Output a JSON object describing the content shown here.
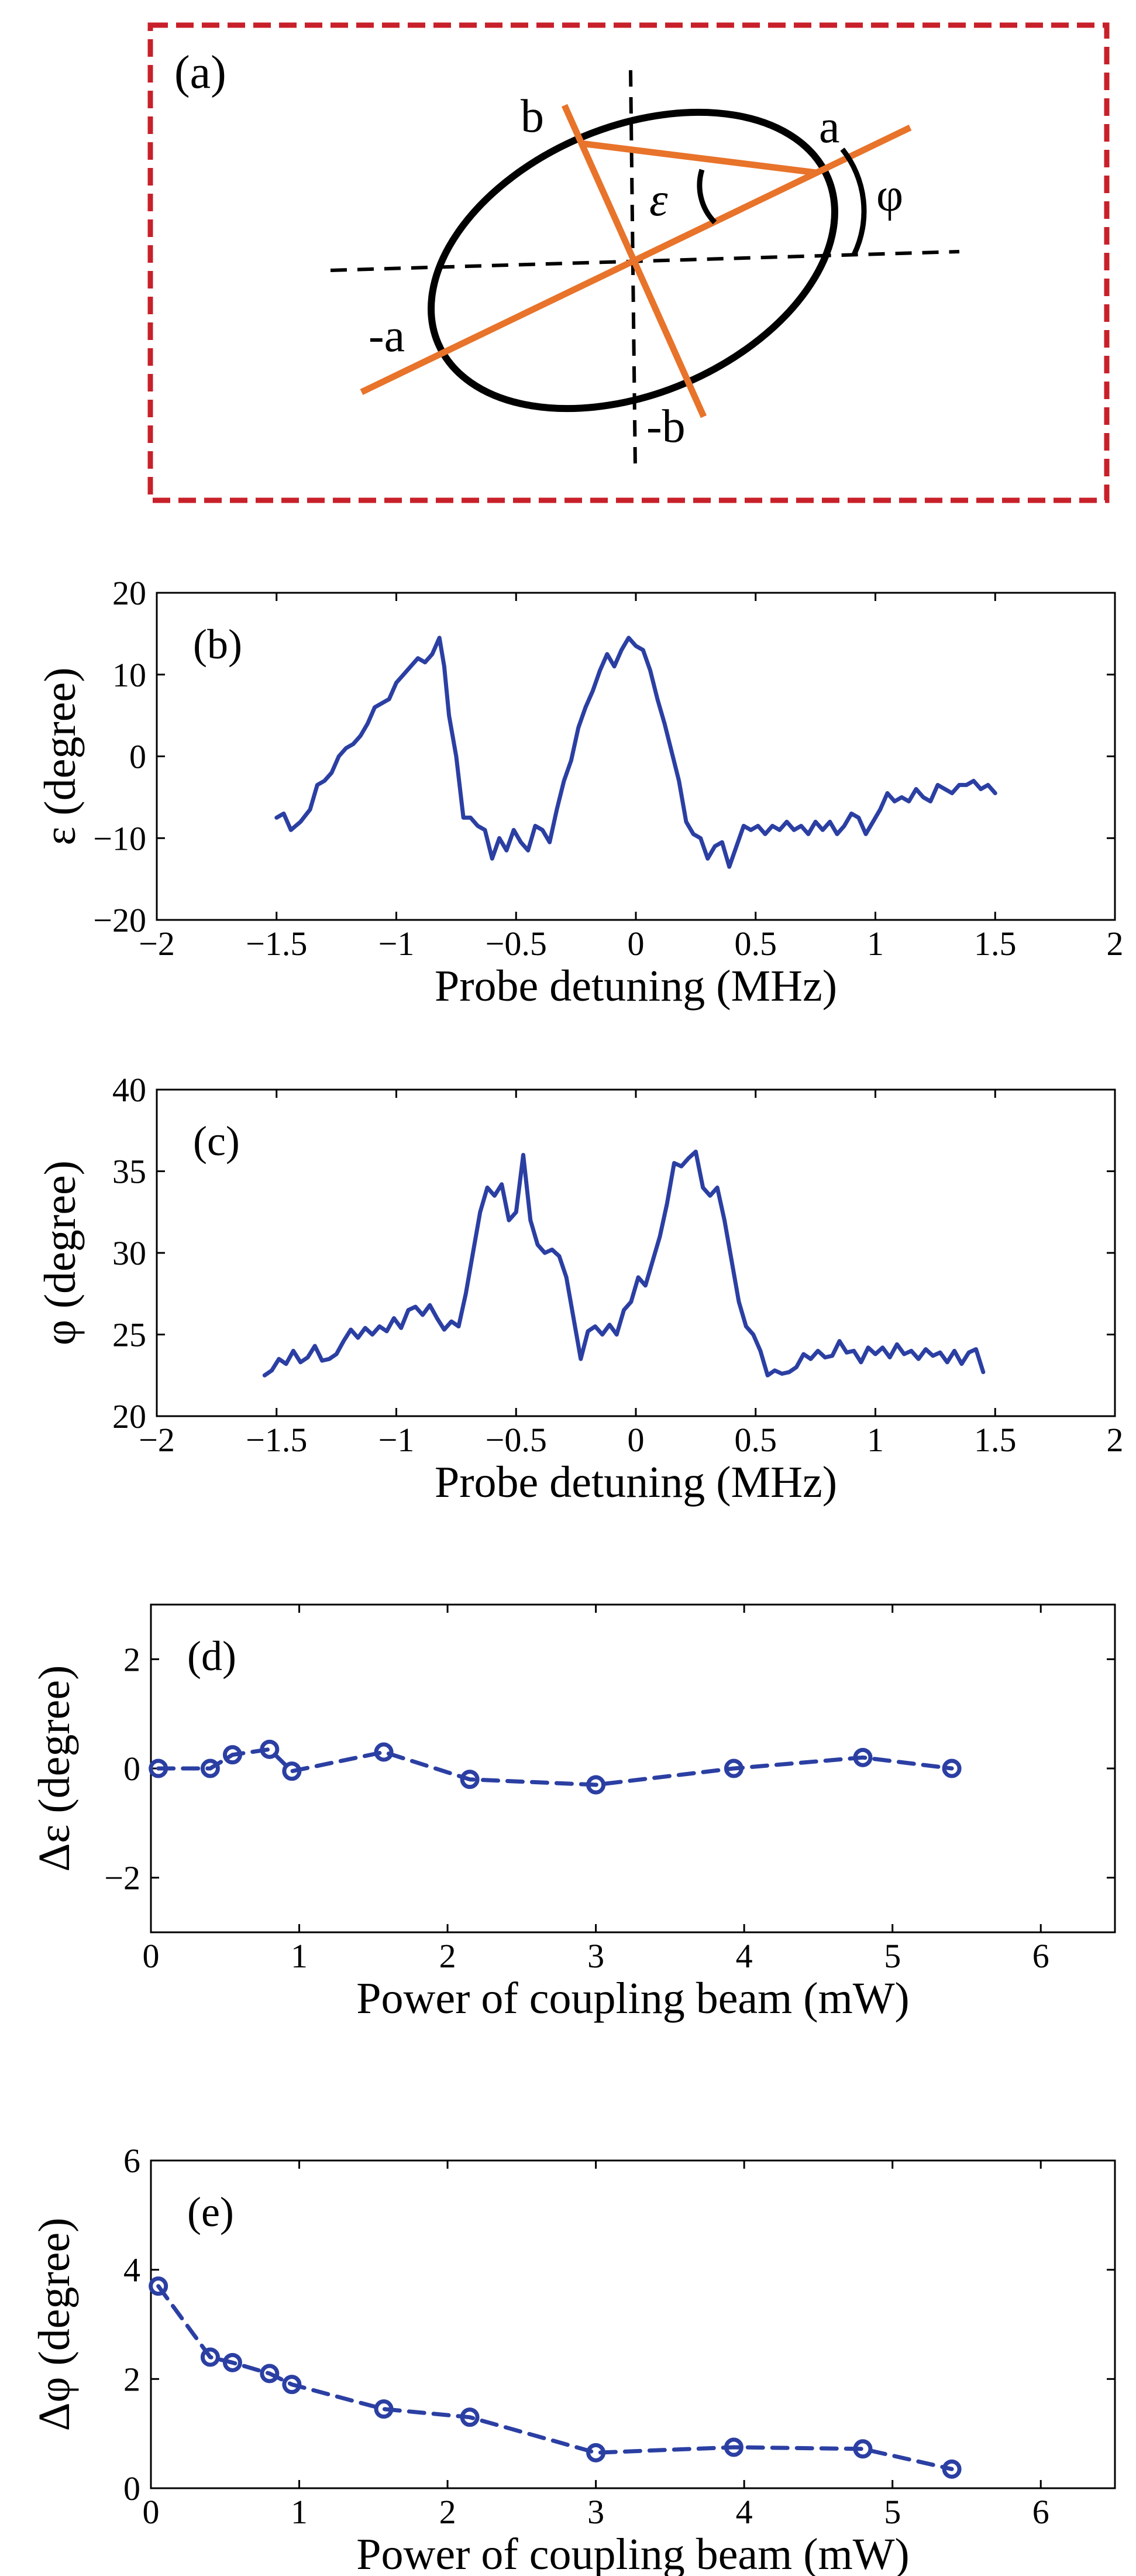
{
  "colors": {
    "series": "#2B3FA3",
    "orange": "#E8732A",
    "dashed_frame": "#C8202A"
  },
  "diagram": {
    "panel_label": "(a)",
    "labels": {
      "a": "a",
      "b": "b",
      "neg_a": "-a",
      "neg_b": "-b",
      "epsilon": "ε",
      "phi": "φ"
    }
  },
  "chart_data": [
    {
      "id": "b",
      "type": "line",
      "panel_label": "(b)",
      "title": "",
      "xlabel": "Probe detuning (MHz)",
      "ylabel": "ε (degree)",
      "xlim": [
        -2,
        2
      ],
      "ylim": [
        -20,
        20
      ],
      "xticks": [
        -2,
        -1.5,
        -1,
        -0.5,
        0,
        0.5,
        1,
        1.5,
        2
      ],
      "xtick_labels": [
        "−2",
        "−1.5",
        "−1",
        "−0.5",
        "0",
        "0.5",
        "1",
        "1.5",
        "2"
      ],
      "yticks": [
        -20,
        -10,
        0,
        10,
        20
      ],
      "ytick_labels": [
        "−20",
        "−10",
        "0",
        "10",
        "20"
      ],
      "series": [
        {
          "name": "ε",
          "style": "solid",
          "x": [
            -1.5,
            -1.47,
            -1.44,
            -1.4,
            -1.36,
            -1.33,
            -1.3,
            -1.27,
            -1.24,
            -1.21,
            -1.18,
            -1.15,
            -1.12,
            -1.09,
            -1.06,
            -1.03,
            -1.0,
            -0.97,
            -0.94,
            -0.91,
            -0.88,
            -0.85,
            -0.82,
            -0.8,
            -0.78,
            -0.75,
            -0.72,
            -0.69,
            -0.66,
            -0.63,
            -0.6,
            -0.57,
            -0.54,
            -0.51,
            -0.48,
            -0.45,
            -0.42,
            -0.39,
            -0.36,
            -0.33,
            -0.3,
            -0.27,
            -0.24,
            -0.21,
            -0.18,
            -0.15,
            -0.12,
            -0.09,
            -0.06,
            -0.03,
            0.0,
            0.03,
            0.06,
            0.09,
            0.12,
            0.15,
            0.18,
            0.21,
            0.24,
            0.27,
            0.3,
            0.33,
            0.36,
            0.39,
            0.42,
            0.45,
            0.48,
            0.51,
            0.54,
            0.57,
            0.6,
            0.63,
            0.66,
            0.69,
            0.72,
            0.75,
            0.78,
            0.81,
            0.84,
            0.87,
            0.9,
            0.93,
            0.96,
            0.99,
            1.02,
            1.05,
            1.08,
            1.11,
            1.14,
            1.17,
            1.2,
            1.23,
            1.26,
            1.29,
            1.32,
            1.35,
            1.38,
            1.41,
            1.44,
            1.47,
            1.5
          ],
          "y": [
            -7.5,
            -7.0,
            -9.0,
            -8.0,
            -6.5,
            -3.5,
            -3.0,
            -2.0,
            0.0,
            1.0,
            1.5,
            2.5,
            4.0,
            6.0,
            6.5,
            7.0,
            9.0,
            10.0,
            11.0,
            12.0,
            11.5,
            12.5,
            14.5,
            11.0,
            5.0,
            0.0,
            -7.5,
            -7.5,
            -8.5,
            -9.0,
            -12.5,
            -10.0,
            -11.5,
            -9.0,
            -10.5,
            -11.5,
            -8.5,
            -9.0,
            -10.5,
            -6.5,
            -3.0,
            -0.5,
            3.5,
            6.0,
            8.0,
            10.5,
            12.5,
            11.0,
            13.0,
            14.5,
            13.5,
            13.0,
            10.5,
            7.0,
            4.0,
            0.5,
            -3.0,
            -8.0,
            -9.5,
            -10.0,
            -12.5,
            -11.0,
            -10.5,
            -13.5,
            -11.0,
            -8.5,
            -9.0,
            -8.5,
            -9.5,
            -8.5,
            -9.0,
            -8.0,
            -9.0,
            -8.5,
            -9.5,
            -8.0,
            -9.0,
            -8.0,
            -9.5,
            -8.5,
            -7.0,
            -7.5,
            -9.5,
            -8.0,
            -6.5,
            -4.5,
            -5.5,
            -5.0,
            -5.5,
            -4.0,
            -5.0,
            -5.5,
            -3.5,
            -4.0,
            -4.5,
            -3.5,
            -3.5,
            -3.0,
            -4.0,
            -3.5,
            -4.5
          ]
        }
      ]
    },
    {
      "id": "c",
      "type": "line",
      "panel_label": "(c)",
      "title": "",
      "xlabel": "Probe detuning (MHz)",
      "ylabel": "φ (degree)",
      "xlim": [
        -2,
        2
      ],
      "ylim": [
        20,
        40
      ],
      "xticks": [
        -2,
        -1.5,
        -1,
        -0.5,
        0,
        0.5,
        1,
        1.5,
        2
      ],
      "xtick_labels": [
        "−2",
        "−1.5",
        "−1",
        "−0.5",
        "0",
        "0.5",
        "1",
        "1.5",
        "2"
      ],
      "yticks": [
        20,
        25,
        30,
        35,
        40
      ],
      "ytick_labels": [
        "20",
        "25",
        "30",
        "35",
        "40"
      ],
      "series": [
        {
          "name": "φ",
          "style": "solid",
          "x": [
            -1.55,
            -1.52,
            -1.49,
            -1.46,
            -1.43,
            -1.4,
            -1.37,
            -1.34,
            -1.31,
            -1.28,
            -1.25,
            -1.22,
            -1.19,
            -1.16,
            -1.13,
            -1.1,
            -1.07,
            -1.04,
            -1.01,
            -0.98,
            -0.95,
            -0.92,
            -0.89,
            -0.86,
            -0.83,
            -0.8,
            -0.77,
            -0.74,
            -0.71,
            -0.68,
            -0.65,
            -0.62,
            -0.59,
            -0.56,
            -0.53,
            -0.5,
            -0.47,
            -0.44,
            -0.41,
            -0.38,
            -0.35,
            -0.32,
            -0.29,
            -0.26,
            -0.23,
            -0.2,
            -0.17,
            -0.14,
            -0.11,
            -0.08,
            -0.05,
            -0.02,
            0.01,
            0.04,
            0.07,
            0.1,
            0.13,
            0.16,
            0.19,
            0.22,
            0.25,
            0.28,
            0.31,
            0.34,
            0.37,
            0.4,
            0.43,
            0.46,
            0.49,
            0.52,
            0.55,
            0.58,
            0.61,
            0.64,
            0.67,
            0.7,
            0.73,
            0.76,
            0.79,
            0.82,
            0.85,
            0.88,
            0.91,
            0.94,
            0.97,
            1.0,
            1.03,
            1.06,
            1.09,
            1.12,
            1.15,
            1.18,
            1.21,
            1.24,
            1.27,
            1.3,
            1.33,
            1.36,
            1.39,
            1.42,
            1.45
          ],
          "y": [
            22.5,
            22.8,
            23.5,
            23.2,
            24.0,
            23.3,
            23.6,
            24.3,
            23.4,
            23.5,
            23.8,
            24.6,
            25.3,
            24.8,
            25.4,
            25.0,
            25.5,
            25.2,
            26.0,
            25.4,
            26.5,
            26.7,
            26.2,
            26.8,
            26.0,
            25.3,
            25.8,
            25.5,
            27.5,
            30.0,
            32.5,
            34.0,
            33.5,
            34.2,
            32.0,
            32.5,
            36.0,
            32.0,
            30.5,
            30.0,
            30.2,
            29.8,
            28.5,
            26.0,
            23.5,
            25.2,
            25.5,
            25.0,
            25.6,
            25.0,
            26.5,
            27.0,
            28.5,
            28.0,
            29.5,
            31.0,
            33.0,
            35.5,
            35.3,
            35.8,
            36.2,
            34.0,
            33.5,
            34.0,
            32.0,
            29.5,
            27.0,
            25.5,
            25.0,
            24.0,
            22.5,
            22.8,
            22.6,
            22.7,
            23.0,
            23.8,
            23.5,
            24.0,
            23.6,
            23.7,
            24.6,
            23.9,
            24.0,
            23.3,
            24.2,
            23.8,
            24.2,
            23.6,
            24.4,
            23.8,
            24.0,
            23.5,
            24.1,
            23.7,
            23.9,
            23.3,
            24.0,
            23.2,
            23.9,
            24.1,
            22.7
          ]
        }
      ]
    },
    {
      "id": "d",
      "type": "line",
      "panel_label": "(d)",
      "title": "",
      "xlabel": "Power of coupling beam (mW)",
      "ylabel": "Δε (degree)",
      "xlim": [
        0,
        6.5
      ],
      "ylim": [
        -3,
        3
      ],
      "xticks": [
        0,
        1,
        2,
        3,
        4,
        5,
        6
      ],
      "xtick_labels": [
        "0",
        "1",
        "2",
        "3",
        "4",
        "5",
        "6"
      ],
      "yticks": [
        -2,
        0,
        2
      ],
      "ytick_labels": [
        "−2",
        "0",
        "2"
      ],
      "series": [
        {
          "name": "Δε",
          "style": "dashed-circle",
          "x": [
            0.05,
            0.4,
            0.55,
            0.8,
            0.95,
            1.57,
            2.15,
            3.0,
            3.93,
            4.8,
            5.4
          ],
          "y": [
            0.0,
            0.0,
            0.25,
            0.35,
            -0.05,
            0.3,
            -0.2,
            -0.3,
            0.0,
            0.2,
            0.0
          ]
        }
      ]
    },
    {
      "id": "e",
      "type": "line",
      "panel_label": "(e)",
      "title": "",
      "xlabel": "Power of coupling beam (mW)",
      "ylabel": "Δφ (degree)",
      "xlim": [
        0,
        6.5
      ],
      "ylim": [
        0,
        6
      ],
      "xticks": [
        0,
        1,
        2,
        3,
        4,
        5,
        6
      ],
      "xtick_labels": [
        "0",
        "1",
        "2",
        "3",
        "4",
        "5",
        "6"
      ],
      "yticks": [
        0,
        2,
        4,
        6
      ],
      "ytick_labels": [
        "0",
        "2",
        "4",
        "6"
      ],
      "series": [
        {
          "name": "Δφ",
          "style": "dashed-circle",
          "x": [
            0.05,
            0.4,
            0.55,
            0.8,
            0.95,
            1.57,
            2.15,
            3.0,
            3.93,
            4.8,
            5.4
          ],
          "y": [
            3.7,
            2.4,
            2.3,
            2.1,
            1.9,
            1.45,
            1.3,
            0.65,
            0.75,
            0.72,
            0.35
          ]
        }
      ]
    }
  ]
}
